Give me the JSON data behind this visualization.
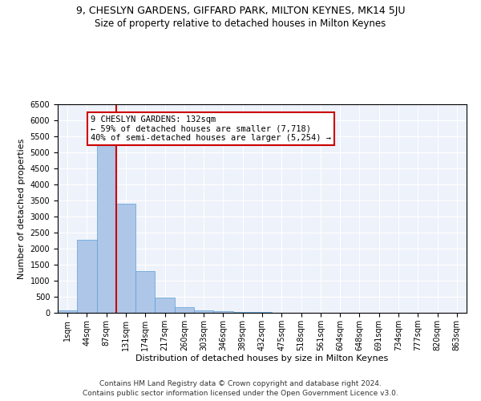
{
  "title": "9, CHESLYN GARDENS, GIFFARD PARK, MILTON KEYNES, MK14 5JU",
  "subtitle": "Size of property relative to detached houses in Milton Keynes",
  "xlabel": "Distribution of detached houses by size in Milton Keynes",
  "ylabel": "Number of detached properties",
  "footer_line1": "Contains HM Land Registry data © Crown copyright and database right 2024.",
  "footer_line2": "Contains public sector information licensed under the Open Government Licence v3.0.",
  "annotation_title": "9 CHESLYN GARDENS: 132sqm",
  "annotation_line2": "← 59% of detached houses are smaller (7,718)",
  "annotation_line3": "40% of semi-detached houses are larger (5,254) →",
  "bar_labels": [
    "1sqm",
    "44sqm",
    "87sqm",
    "131sqm",
    "174sqm",
    "217sqm",
    "260sqm",
    "303sqm",
    "346sqm",
    "389sqm",
    "432sqm",
    "475sqm",
    "518sqm",
    "561sqm",
    "604sqm",
    "648sqm",
    "691sqm",
    "734sqm",
    "777sqm",
    "820sqm",
    "863sqm"
  ],
  "bar_values": [
    75,
    2280,
    5430,
    3390,
    1300,
    480,
    165,
    80,
    55,
    35,
    20,
    10,
    5,
    3,
    2,
    1,
    1,
    0,
    0,
    0,
    0
  ],
  "bar_color": "#aec6e8",
  "bar_edge_color": "#5a9fd4",
  "vline_index": 3,
  "vline_color": "#cc0000",
  "annotation_box_color": "#cc0000",
  "ylim": [
    0,
    6500
  ],
  "yticks": [
    0,
    500,
    1000,
    1500,
    2000,
    2500,
    3000,
    3500,
    4000,
    4500,
    5000,
    5500,
    6000,
    6500
  ],
  "bg_color": "#eef2fa",
  "grid_color": "#ffffff",
  "title_fontsize": 9,
  "subtitle_fontsize": 8.5,
  "axis_label_fontsize": 8,
  "tick_fontsize": 7,
  "annotation_fontsize": 7.5,
  "footer_fontsize": 6.5
}
